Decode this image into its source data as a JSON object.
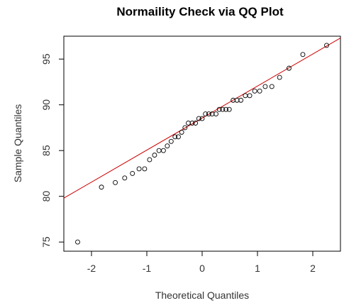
{
  "chart_data": {
    "type": "scatter",
    "title": "Normaility Check via QQ Plot",
    "xlabel": "Theoretical Quantiles",
    "ylabel": "Sample Quantiles",
    "xlim": [
      -2.5,
      2.5
    ],
    "ylim": [
      74,
      97.5
    ],
    "xticks": [
      -2,
      -1,
      0,
      1,
      2
    ],
    "xtick_labels": [
      "-2",
      "-1",
      "0",
      "1",
      "2"
    ],
    "yticks": [
      75,
      80,
      85,
      90,
      95
    ],
    "ytick_labels": [
      "75",
      "80",
      "85",
      "90",
      "95"
    ],
    "grid": false,
    "legend": "none",
    "points": [
      [
        -2.25,
        75.0
      ],
      [
        -1.82,
        81.0
      ],
      [
        -1.57,
        81.5
      ],
      [
        -1.4,
        82.0
      ],
      [
        -1.26,
        82.5
      ],
      [
        -1.14,
        83.0
      ],
      [
        -1.04,
        83.0
      ],
      [
        -0.95,
        84.0
      ],
      [
        -0.86,
        84.5
      ],
      [
        -0.78,
        85.0
      ],
      [
        -0.7,
        85.0
      ],
      [
        -0.63,
        85.5
      ],
      [
        -0.56,
        86.0
      ],
      [
        -0.49,
        86.5
      ],
      [
        -0.43,
        86.5
      ],
      [
        -0.37,
        87.0
      ],
      [
        -0.31,
        87.5
      ],
      [
        -0.25,
        88.0
      ],
      [
        -0.18,
        88.0
      ],
      [
        -0.12,
        88.0
      ],
      [
        -0.06,
        88.5
      ],
      [
        0.0,
        88.5
      ],
      [
        0.06,
        89.0
      ],
      [
        0.12,
        89.0
      ],
      [
        0.18,
        89.0
      ],
      [
        0.25,
        89.0
      ],
      [
        0.31,
        89.5
      ],
      [
        0.37,
        89.5
      ],
      [
        0.43,
        89.5
      ],
      [
        0.49,
        89.5
      ],
      [
        0.56,
        90.5
      ],
      [
        0.63,
        90.5
      ],
      [
        0.7,
        90.5
      ],
      [
        0.78,
        91.0
      ],
      [
        0.86,
        91.0
      ],
      [
        0.95,
        91.5
      ],
      [
        1.04,
        91.5
      ],
      [
        1.14,
        92.0
      ],
      [
        1.26,
        92.0
      ],
      [
        1.4,
        93.0
      ],
      [
        1.57,
        94.0
      ],
      [
        1.82,
        95.5
      ],
      [
        2.25,
        96.5
      ]
    ],
    "reference_line": {
      "slope": 3.5,
      "intercept": 88.55
    },
    "colors": {
      "points": "#000000",
      "reference_line": "#cc0000",
      "frame": "#000000",
      "text": "#333333"
    }
  }
}
